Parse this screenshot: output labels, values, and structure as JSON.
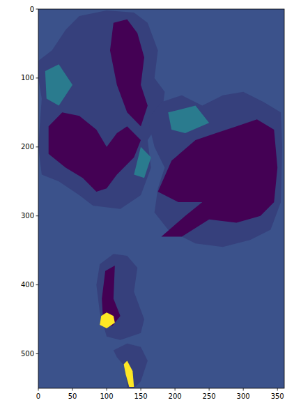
{
  "chart_data": {
    "type": "image",
    "color": "#3b528b",
    "xlim": [
      0,
      360
    ],
    "ylim": [
      550,
      0
    ],
    "xticks": [
      0,
      50,
      100,
      150,
      200,
      250,
      300,
      350
    ],
    "yticks": [
      0,
      100,
      200,
      300,
      400,
      500
    ],
    "grid": false,
    "regions": [
      {
        "color": "#36407c",
        "points": [
          [
            0,
            75
          ],
          [
            20,
            60
          ],
          [
            40,
            30
          ],
          [
            60,
            10
          ],
          [
            100,
            2
          ],
          [
            140,
            5
          ],
          [
            160,
            20
          ],
          [
            175,
            60
          ],
          [
            170,
            100
          ],
          [
            185,
            120
          ],
          [
            180,
            160
          ],
          [
            160,
            190
          ],
          [
            165,
            230
          ],
          [
            150,
            270
          ],
          [
            120,
            290
          ],
          [
            80,
            285
          ],
          [
            60,
            270
          ],
          [
            30,
            250
          ],
          [
            5,
            240
          ],
          [
            0,
            200
          ],
          [
            5,
            130
          ],
          [
            0,
            100
          ]
        ]
      },
      {
        "color": "#2a7b8e",
        "points": [
          [
            10,
            90
          ],
          [
            30,
            80
          ],
          [
            50,
            110
          ],
          [
            30,
            140
          ],
          [
            12,
            130
          ]
        ]
      },
      {
        "color": "#2a7b8e",
        "points": [
          [
            150,
            200
          ],
          [
            165,
            215
          ],
          [
            155,
            245
          ],
          [
            140,
            240
          ]
        ]
      },
      {
        "color": "#440154",
        "points": [
          [
            110,
            20
          ],
          [
            130,
            15
          ],
          [
            145,
            35
          ],
          [
            155,
            70
          ],
          [
            150,
            110
          ],
          [
            160,
            140
          ],
          [
            150,
            170
          ],
          [
            130,
            150
          ],
          [
            115,
            110
          ],
          [
            105,
            60
          ]
        ]
      },
      {
        "color": "#440154",
        "points": [
          [
            15,
            170
          ],
          [
            35,
            150
          ],
          [
            60,
            155
          ],
          [
            85,
            175
          ],
          [
            100,
            200
          ],
          [
            115,
            180
          ],
          [
            130,
            170
          ],
          [
            150,
            190
          ],
          [
            140,
            215
          ],
          [
            115,
            240
          ],
          [
            100,
            260
          ],
          [
            85,
            265
          ],
          [
            65,
            245
          ],
          [
            40,
            230
          ],
          [
            15,
            210
          ]
        ]
      },
      {
        "color": "#36407c",
        "points": [
          [
            160,
            160
          ],
          [
            180,
            135
          ],
          [
            210,
            125
          ],
          [
            240,
            140
          ],
          [
            270,
            125
          ],
          [
            300,
            120
          ],
          [
            330,
            135
          ],
          [
            355,
            150
          ],
          [
            357,
            200
          ],
          [
            355,
            280
          ],
          [
            340,
            320
          ],
          [
            310,
            335
          ],
          [
            270,
            345
          ],
          [
            230,
            340
          ],
          [
            190,
            320
          ],
          [
            170,
            295
          ],
          [
            175,
            260
          ],
          [
            185,
            230
          ],
          [
            170,
            200
          ]
        ]
      },
      {
        "color": "#2a7b8e",
        "points": [
          [
            190,
            150
          ],
          [
            230,
            140
          ],
          [
            250,
            165
          ],
          [
            215,
            180
          ],
          [
            195,
            175
          ]
        ]
      },
      {
        "color": "#440154",
        "points": [
          [
            175,
            265
          ],
          [
            195,
            220
          ],
          [
            230,
            190
          ],
          [
            260,
            180
          ],
          [
            290,
            170
          ],
          [
            320,
            160
          ],
          [
            345,
            175
          ],
          [
            350,
            230
          ],
          [
            345,
            280
          ],
          [
            325,
            300
          ],
          [
            290,
            310
          ],
          [
            250,
            305
          ],
          [
            210,
            330
          ],
          [
            180,
            330
          ],
          [
            215,
            300
          ],
          [
            240,
            280
          ],
          [
            205,
            280
          ]
        ]
      },
      {
        "color": "#36407c",
        "points": [
          [
            90,
            370
          ],
          [
            110,
            355
          ],
          [
            130,
            358
          ],
          [
            145,
            375
          ],
          [
            140,
            410
          ],
          [
            155,
            450
          ],
          [
            150,
            470
          ],
          [
            120,
            480
          ],
          [
            100,
            475
          ],
          [
            90,
            440
          ],
          [
            85,
            400
          ]
        ]
      },
      {
        "color": "#440154",
        "points": [
          [
            98,
            380
          ],
          [
            112,
            372
          ],
          [
            110,
            420
          ],
          [
            120,
            445
          ],
          [
            108,
            460
          ],
          [
            95,
            455
          ],
          [
            93,
            420
          ]
        ]
      },
      {
        "color": "#fde725",
        "points": [
          [
            92,
            445
          ],
          [
            100,
            440
          ],
          [
            110,
            445
          ],
          [
            112,
            455
          ],
          [
            100,
            463
          ],
          [
            90,
            458
          ]
        ]
      },
      {
        "color": "#36407c",
        "points": [
          [
            110,
            495
          ],
          [
            130,
            485
          ],
          [
            150,
            490
          ],
          [
            160,
            510
          ],
          [
            150,
            540
          ],
          [
            140,
            550
          ],
          [
            130,
            550
          ],
          [
            128,
            520
          ],
          [
            115,
            505
          ]
        ]
      },
      {
        "color": "#fde725",
        "points": [
          [
            125,
            515
          ],
          [
            130,
            510
          ],
          [
            138,
            525
          ],
          [
            140,
            548
          ],
          [
            133,
            548
          ],
          [
            128,
            530
          ]
        ]
      }
    ]
  }
}
